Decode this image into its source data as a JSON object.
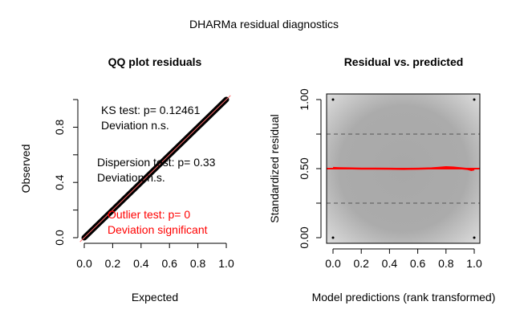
{
  "main_title": "DHARMa residual diagnostics",
  "chart_data": [
    {
      "type": "line",
      "title": "QQ plot residuals",
      "xlabel": "Expected",
      "ylabel": "Observed",
      "xlim": [
        0,
        1
      ],
      "ylim": [
        0,
        1
      ],
      "xticks": [
        "0.0",
        "0.2",
        "0.4",
        "0.6",
        "0.8",
        "1.0"
      ],
      "yticks": [
        "0.0",
        "0.4",
        "0.8"
      ],
      "ytick_values": [
        0,
        0.2,
        0.4,
        0.6,
        0.8,
        1.0
      ],
      "series": [
        {
          "x": [
            0,
            1
          ],
          "y": [
            0,
            1
          ],
          "color": "#000000",
          "style": "dense points"
        },
        {
          "x": [
            0,
            1
          ],
          "y": [
            0,
            1
          ],
          "color": "#ff6b6b",
          "style": "reference line"
        }
      ],
      "annotations": [
        {
          "lines": [
            "KS test: p= 0.12461",
            "Deviation  n.s."
          ],
          "color": "#000000"
        },
        {
          "lines": [
            "Dispersion test: p= 0.33",
            "Deviation  n.s."
          ],
          "color": "#000000"
        },
        {
          "lines": [
            "Outlier test: p= 0",
            "Deviation  significant"
          ],
          "color": "#ff0000"
        }
      ],
      "grid": false
    },
    {
      "type": "line",
      "title": "Residual vs. predicted",
      "xlabel": "Model predictions (rank transformed)",
      "ylabel": "Standardized residual",
      "xlim": [
        0,
        1
      ],
      "ylim": [
        0,
        1
      ],
      "xticks": [
        "0.0",
        "0.2",
        "0.4",
        "0.6",
        "0.8",
        "1.0"
      ],
      "yticks": [
        "0.00",
        "0.50",
        "1.00"
      ],
      "ytick_values": [
        0,
        0.25,
        0.5,
        0.75,
        1.0
      ],
      "hlines": [
        0.25,
        0.75
      ],
      "background": "density shading (grey)",
      "series": [
        {
          "color": "#ff0000",
          "x": [
            0,
            0.05,
            0.1,
            0.2,
            0.3,
            0.4,
            0.5,
            0.6,
            0.7,
            0.75,
            0.8,
            0.85,
            0.9,
            0.95,
            0.98,
            1.0
          ],
          "y": [
            0.505,
            0.503,
            0.502,
            0.5,
            0.5,
            0.499,
            0.498,
            0.499,
            0.502,
            0.506,
            0.51,
            0.508,
            0.503,
            0.498,
            0.49,
            0.495
          ]
        }
      ],
      "grid": false
    }
  ]
}
